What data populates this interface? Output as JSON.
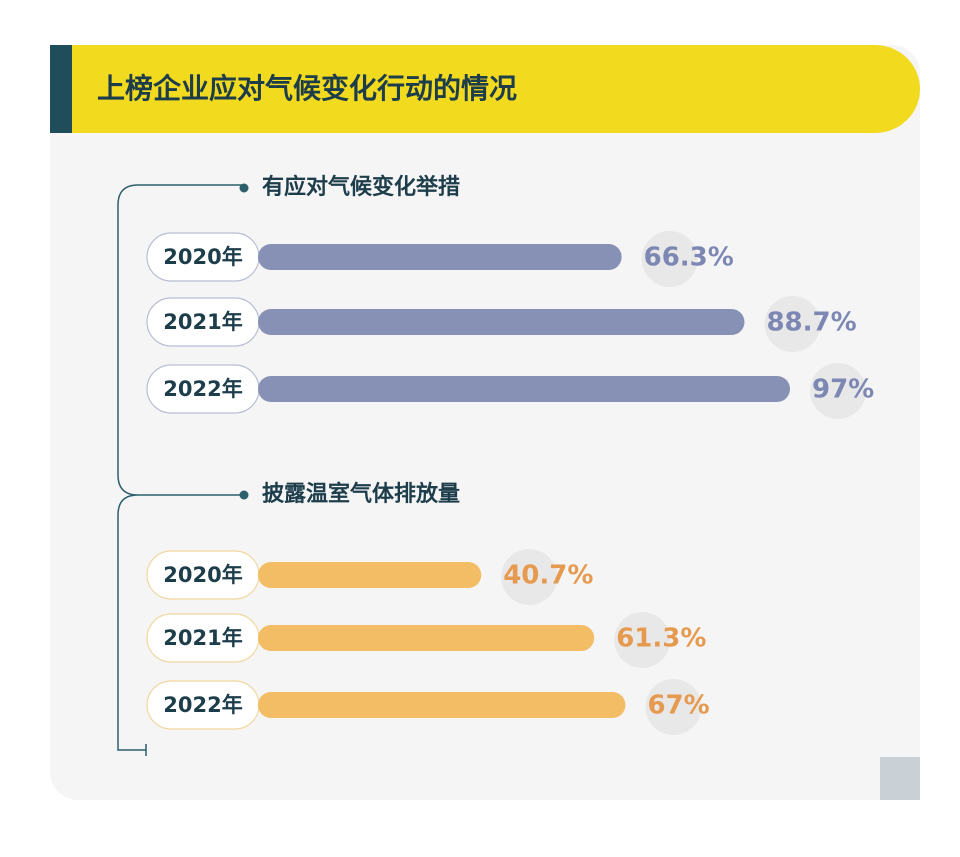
{
  "title": "上榜企业应对气候变化行动的情况",
  "chart_data": [
    {
      "type": "bar",
      "title": "有应对气候变化举措",
      "categories": [
        "2020年",
        "2021年",
        "2022年"
      ],
      "values": [
        66.3,
        88.7,
        97
      ],
      "value_labels": [
        "66.3%",
        "88.7%",
        "97%"
      ],
      "color": "#8790b5",
      "label_color": "#7d87b4"
    },
    {
      "type": "bar",
      "title": "披露温室气体排放量",
      "categories": [
        "2020年",
        "2021年",
        "2022年"
      ],
      "values": [
        40.7,
        61.3,
        67
      ],
      "value_labels": [
        "40.7%",
        "61.3%",
        "67%"
      ],
      "color": "#f3bd66",
      "label_color": "#e69a50"
    }
  ]
}
